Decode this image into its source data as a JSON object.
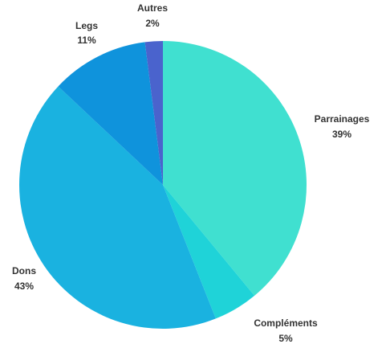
{
  "chart_data": {
    "type": "pie",
    "title": "",
    "slices": [
      {
        "label": "Parrainages",
        "value": 39,
        "value_label": "39%",
        "color": "#40e0d0"
      },
      {
        "label": "Compléments",
        "value": 5,
        "value_label": "5%",
        "color": "#1fd3d8"
      },
      {
        "label": "Dons",
        "value": 43,
        "value_label": "43%",
        "color": "#1ab2e0"
      },
      {
        "label": "Legs",
        "value": 11,
        "value_label": "11%",
        "color": "#0f93dc"
      },
      {
        "label": "Autres",
        "value": 2,
        "value_label": "2%",
        "color": "#4a63cd"
      }
    ],
    "start_angle_deg": 0,
    "direction": "clockwise",
    "legend": "none"
  }
}
